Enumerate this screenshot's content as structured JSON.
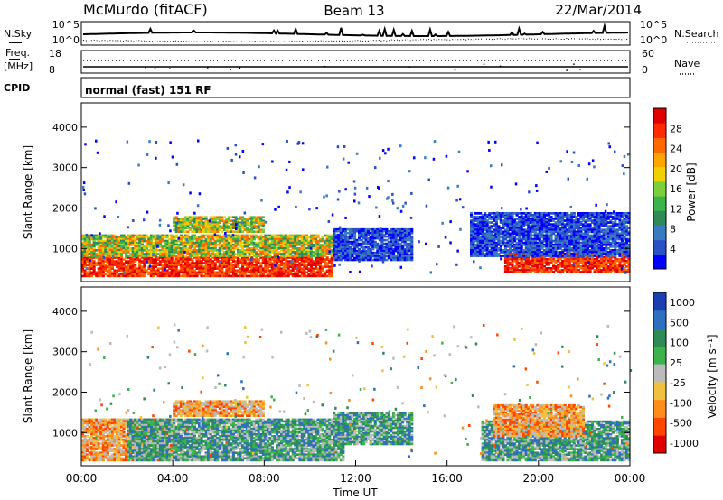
{
  "header": {
    "station": "McMurdo (fitACF)",
    "beam": "Beam 13",
    "date": "22/Mar/2014"
  },
  "strips": {
    "nsky_label": "N.Sky",
    "nsky_ticks": [
      "10^5",
      "10^0"
    ],
    "nsearch_label": "N.Search",
    "nsearch_ticks": [
      "10^5",
      "10^0"
    ],
    "freq_label": "Freq.",
    "freq_unit": "[MHz]",
    "freq_ticks": [
      "18",
      "8"
    ],
    "nave_label": "Nave",
    "nave_ticks": [
      "60",
      "0"
    ],
    "cpid_label": "CPID",
    "cpid_text": "normal (fast) 151 RF"
  },
  "chart_data": [
    {
      "type": "heatmap",
      "name": "power-panel",
      "ylabel": "Slant Range [km]",
      "yticks": [
        "1000",
        "2000",
        "3000",
        "4000"
      ],
      "ylim": [
        180,
        4600
      ],
      "colorbar": {
        "label": "Power [dB]",
        "ticks": [
          "4",
          "8",
          "12",
          "16",
          "20",
          "24",
          "28"
        ],
        "colors": [
          "#0000ff",
          "#2a50c8",
          "#3a7bbf",
          "#2e8b57",
          "#3cb44b",
          "#7bcf3a",
          "#f0d000",
          "#ffa500",
          "#ff6a00",
          "#ff2a00",
          "#e00000"
        ]
      },
      "features": [
        {
          "t0": 0.0,
          "t1": 11.0,
          "r0": 300,
          "r1": 800,
          "level": "high"
        },
        {
          "t0": 0.0,
          "t1": 11.5,
          "r0": 800,
          "r1": 1350,
          "level": "mid"
        },
        {
          "t0": 4.0,
          "t1": 8.0,
          "r0": 1400,
          "r1": 1800,
          "level": "mid"
        },
        {
          "t0": 11.0,
          "t1": 14.5,
          "r0": 700,
          "r1": 1500,
          "level": "low"
        },
        {
          "t0": 18.5,
          "t1": 24.0,
          "r0": 400,
          "r1": 900,
          "level": "high"
        },
        {
          "t0": 17.0,
          "t1": 24.0,
          "r0": 800,
          "r1": 1900,
          "level": "low"
        }
      ]
    },
    {
      "type": "heatmap",
      "name": "velocity-panel",
      "ylabel": "Slant Range [km]",
      "yticks": [
        "1000",
        "2000",
        "3000",
        "4000"
      ],
      "ylim": [
        180,
        4600
      ],
      "xticks": [
        "00:00",
        "04:00",
        "08:00",
        "12:00",
        "16:00",
        "20:00",
        "00:00"
      ],
      "xlabel": "Time UT",
      "colorbar": {
        "label": "Velocity [m s⁻¹]",
        "ticks": [
          "1000",
          "500",
          "100",
          "25",
          "-25",
          "-100",
          "-500",
          "-1000"
        ],
        "colors": [
          "#1a3fb0",
          "#2e6fbf",
          "#2e8b57",
          "#3cb44b",
          "#bbbbbb",
          "#f0c040",
          "#ff8c1a",
          "#ff4500",
          "#e00000"
        ]
      },
      "features": [
        {
          "t0": 0.0,
          "t1": 4.0,
          "r0": 300,
          "r1": 1350,
          "level": "neg"
        },
        {
          "t0": 2.0,
          "t1": 11.5,
          "r0": 300,
          "r1": 1350,
          "level": "pos"
        },
        {
          "t0": 4.0,
          "t1": 8.0,
          "r0": 1400,
          "r1": 1800,
          "level": "neg"
        },
        {
          "t0": 11.0,
          "t1": 14.5,
          "r0": 700,
          "r1": 1500,
          "level": "pos"
        },
        {
          "t0": 17.5,
          "t1": 24.0,
          "r0": 300,
          "r1": 1300,
          "level": "pos"
        },
        {
          "t0": 18.0,
          "t1": 22.0,
          "r0": 900,
          "r1": 1700,
          "level": "neg"
        }
      ]
    }
  ]
}
